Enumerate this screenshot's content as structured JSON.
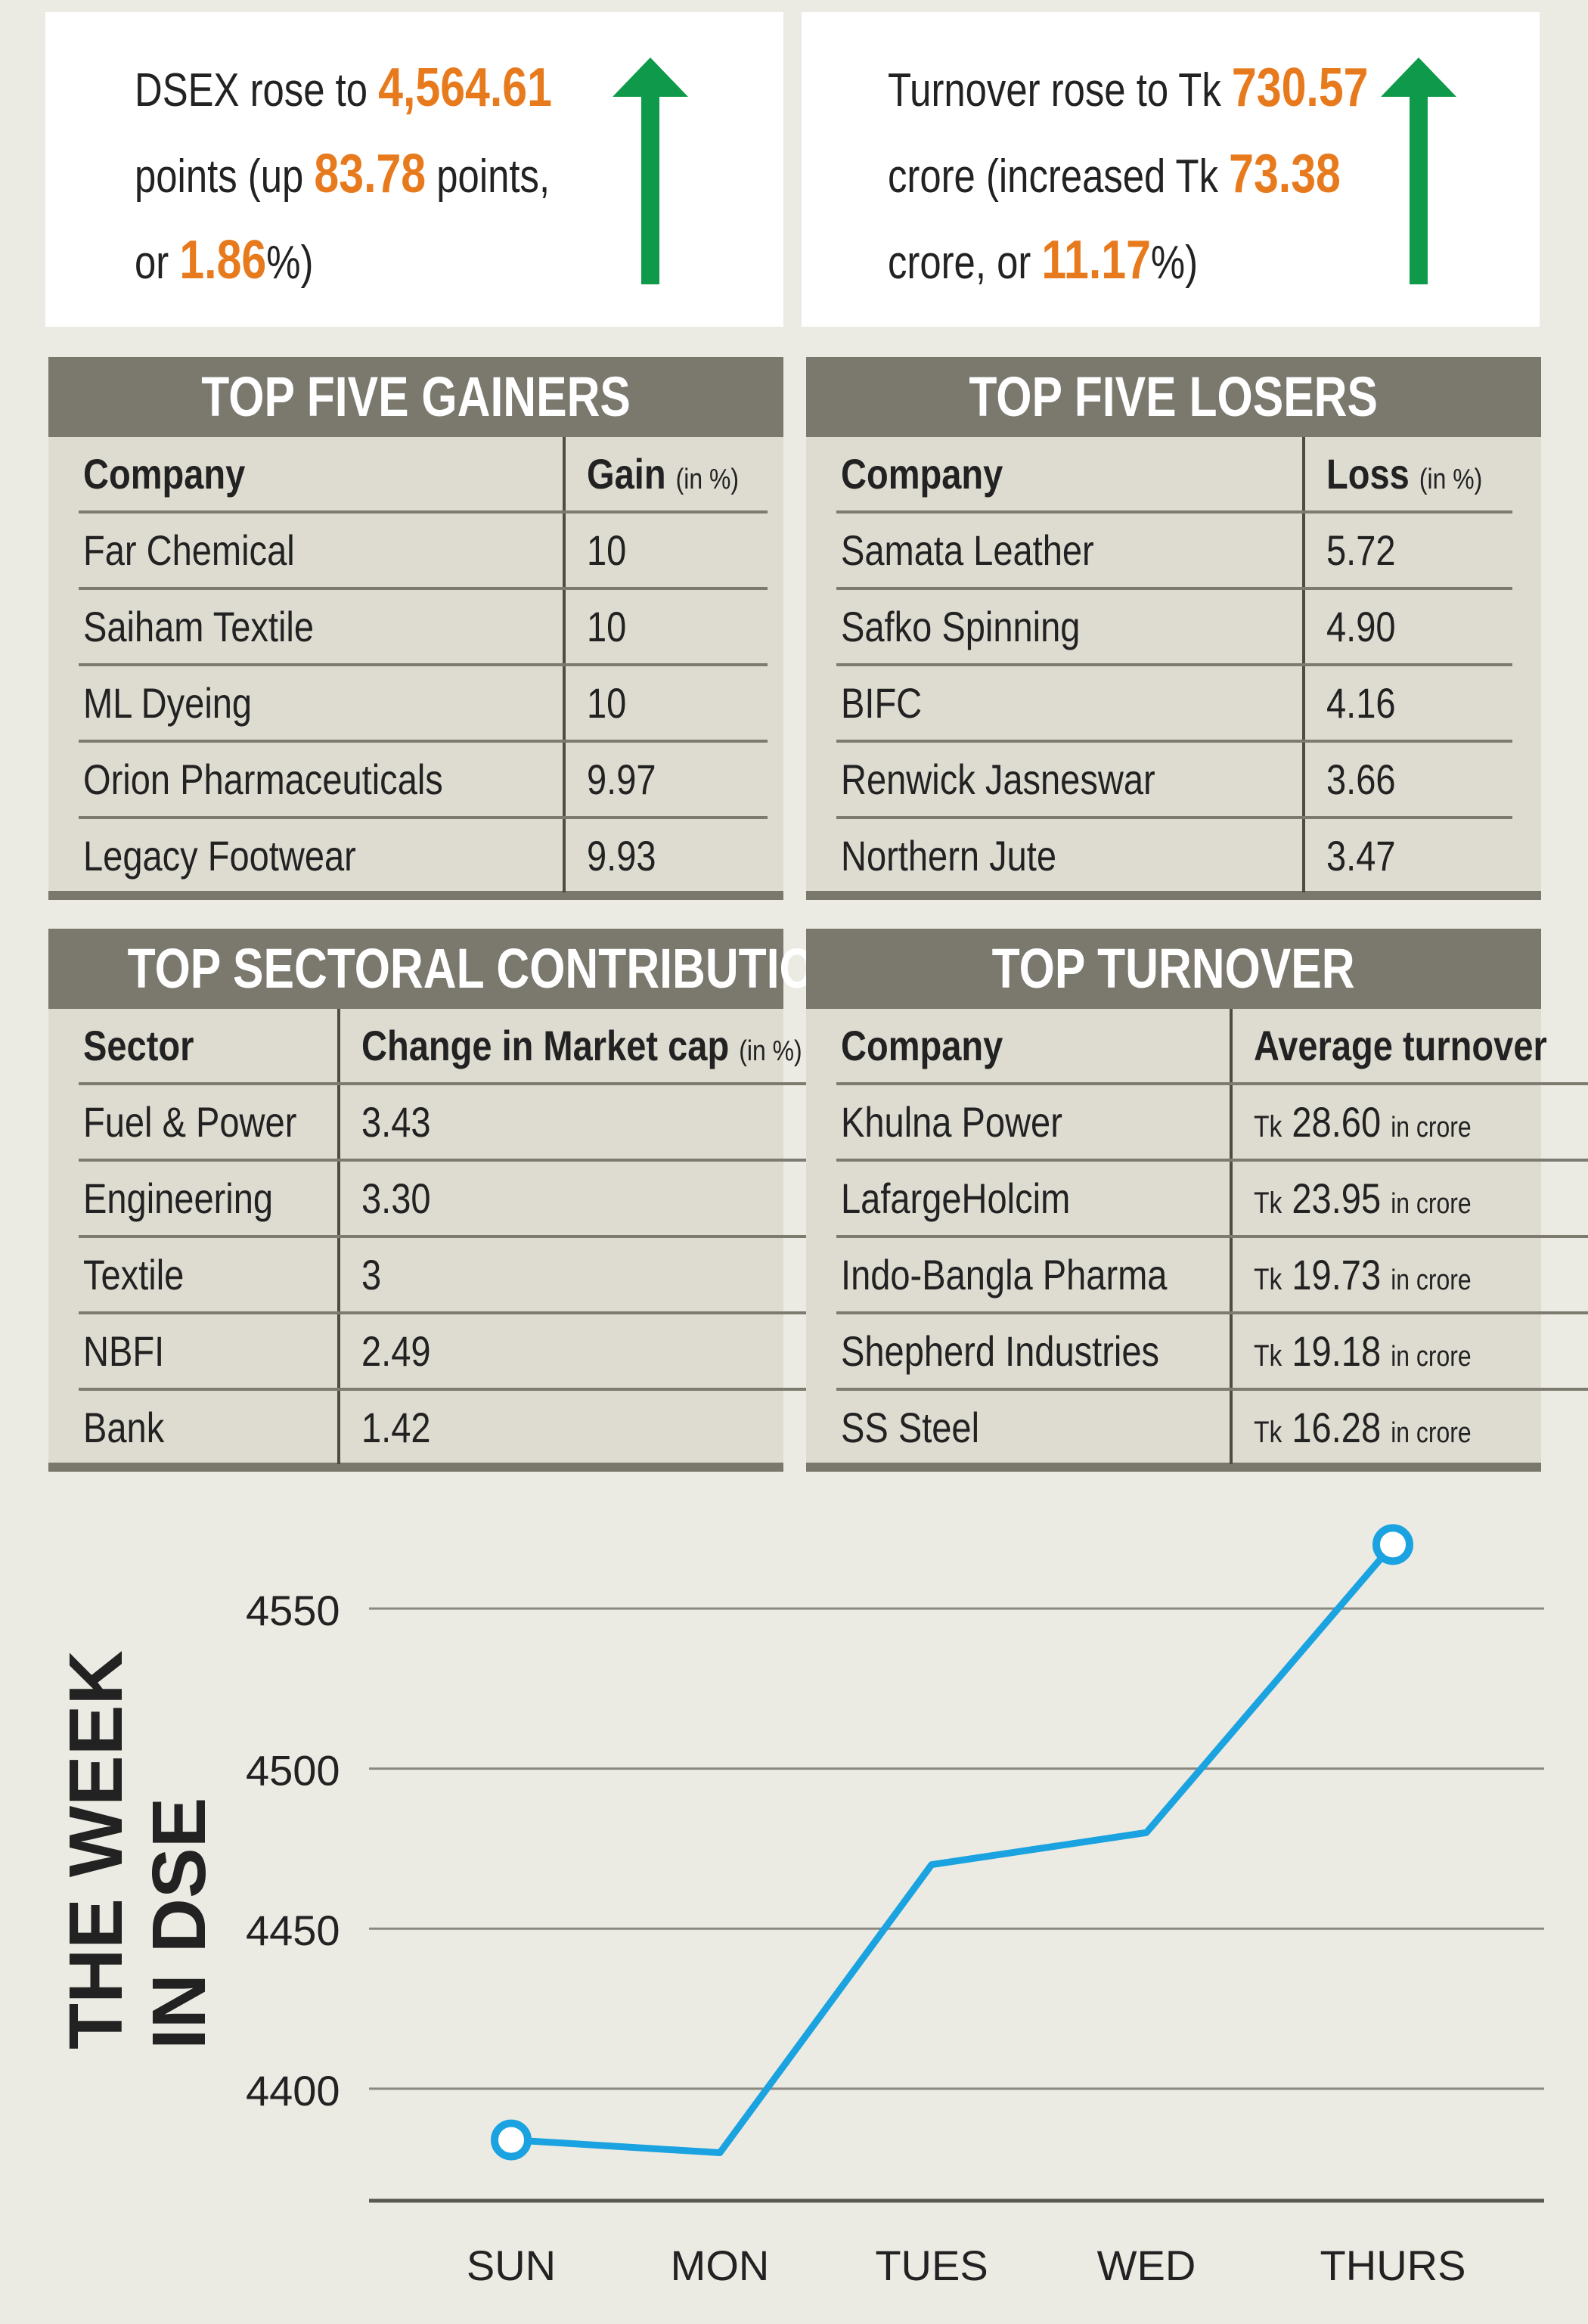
{
  "summary": {
    "dsex": {
      "text1": "DSEX rose to ",
      "value": "4,564.61",
      "text2": "points (up ",
      "change": "83.78",
      "text3": " points,",
      "text4": "or ",
      "pct": "1.86",
      "text5": "%)"
    },
    "turnover": {
      "text1": "Turnover rose to Tk ",
      "value": "730.57",
      "text2": "crore (increased Tk ",
      "change": "73.38",
      "text3": "crore, or ",
      "pct": "11.17",
      "text4": "%)"
    },
    "accent_color": "#e87a1e",
    "arrow_color": "#0e9a4a"
  },
  "gainers": {
    "title": "TOP FIVE GAINERS",
    "col1": "Company",
    "col2": "Gain",
    "col2_unit": "(in %)",
    "rows": [
      {
        "name": "Far Chemical",
        "value": "10"
      },
      {
        "name": "Saiham Textile",
        "value": "10"
      },
      {
        "name": "ML Dyeing",
        "value": "10"
      },
      {
        "name": "Orion Pharmaceuticals",
        "value": "9.97"
      },
      {
        "name": "Legacy Footwear",
        "value": "9.93"
      }
    ]
  },
  "losers": {
    "title": "TOP FIVE LOSERS",
    "col1": "Company",
    "col2": "Loss",
    "col2_unit": "(in %)",
    "rows": [
      {
        "name": "Samata Leather",
        "value": "5.72"
      },
      {
        "name": "Safko Spinning",
        "value": "4.90"
      },
      {
        "name": "BIFC",
        "value": "4.16"
      },
      {
        "name": "Renwick Jasneswar",
        "value": "3.66"
      },
      {
        "name": "Northern Jute",
        "value": "3.47"
      }
    ]
  },
  "sectors": {
    "title": "TOP SECTORAL CONTRIBUTION",
    "col1": "Sector",
    "col2": "Change in Market cap",
    "col2_unit": "(in %)",
    "rows": [
      {
        "name": "Fuel & Power",
        "value": "3.43"
      },
      {
        "name": "Engineering",
        "value": "3.30"
      },
      {
        "name": "Textile",
        "value": "3"
      },
      {
        "name": "NBFI",
        "value": "2.49"
      },
      {
        "name": "Bank",
        "value": "1.42"
      }
    ]
  },
  "turnover_table": {
    "title": "TOP TURNOVER",
    "col1": "Company",
    "col2": "Average turnover",
    "prefix": "Tk",
    "suffix": "in crore",
    "rows": [
      {
        "name": "Khulna Power",
        "value": "28.60"
      },
      {
        "name": "LafargeHolcim",
        "value": "23.95"
      },
      {
        "name": "Indo-Bangla Pharma",
        "value": "19.73"
      },
      {
        "name": "Shepherd Industries",
        "value": "19.18"
      },
      {
        "name": "SS Steel",
        "value": "16.28"
      }
    ]
  },
  "chart_title": {
    "line1": "THE WEEK",
    "line2": "IN DSE"
  },
  "chart_data": {
    "type": "line",
    "categories": [
      "SUN",
      "MON",
      "TUES",
      "WED",
      "THURS"
    ],
    "series": [
      {
        "values": [
          4384,
          4380,
          4470,
          4480,
          4570
        ]
      }
    ],
    "yticks": [
      4400,
      4450,
      4500,
      4550
    ],
    "ylim": [
      4365,
      4580
    ],
    "grid": true,
    "line_color": "#1aa3e0",
    "endpoint_markers": true
  }
}
